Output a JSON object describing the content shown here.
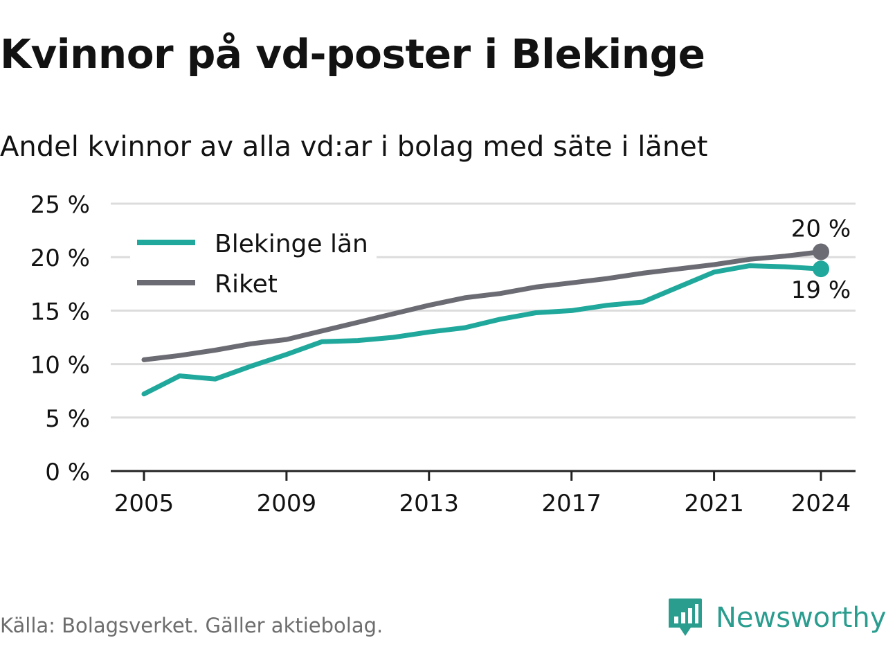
{
  "title": "Kvinnor på vd-poster i Blekinge",
  "subtitle": "Andel kvinnor av alla vd:ar i bolag med säte i länet",
  "source": "Källa: Bolagsverket. Gäller aktiebolag.",
  "brand": "Newsworthy",
  "chart_data": {
    "type": "line",
    "title": "Kvinnor på vd-poster i Blekinge",
    "subtitle": "Andel kvinnor av alla vd:ar i bolag med säte i länet",
    "xlabel": "",
    "ylabel": "",
    "ylim": [
      0,
      25
    ],
    "xlim": [
      2004,
      2025
    ],
    "grid": true,
    "legend_position": "top-left",
    "x": [
      2005,
      2006,
      2007,
      2008,
      2009,
      2010,
      2011,
      2012,
      2013,
      2014,
      2015,
      2016,
      2017,
      2018,
      2019,
      2020,
      2021,
      2022,
      2023,
      2024
    ],
    "x_ticks": [
      2005,
      2009,
      2013,
      2017,
      2021,
      2024
    ],
    "x_tick_labels": [
      "2005",
      "2009",
      "2013",
      "2017",
      "2021",
      "2024"
    ],
    "y_ticks": [
      0,
      5,
      10,
      15,
      20,
      25
    ],
    "y_tick_labels": [
      "0 %",
      "5 %",
      "10 %",
      "15 %",
      "20 %",
      "25 %"
    ],
    "series": [
      {
        "name": "Blekinge län",
        "color": "#1fa89b",
        "values": [
          7.2,
          8.9,
          8.6,
          9.8,
          10.9,
          12.1,
          12.2,
          12.5,
          13.0,
          13.4,
          14.2,
          14.8,
          15.0,
          15.5,
          15.8,
          17.2,
          18.6,
          19.2,
          19.1,
          18.9
        ],
        "end_label": "19 %"
      },
      {
        "name": "Riket",
        "color": "#6b6b73",
        "values": [
          10.4,
          10.8,
          11.3,
          11.9,
          12.3,
          13.1,
          13.9,
          14.7,
          15.5,
          16.2,
          16.6,
          17.2,
          17.6,
          18.0,
          18.5,
          18.9,
          19.3,
          19.8,
          20.1,
          20.5
        ],
        "end_label": "20 %"
      }
    ]
  }
}
